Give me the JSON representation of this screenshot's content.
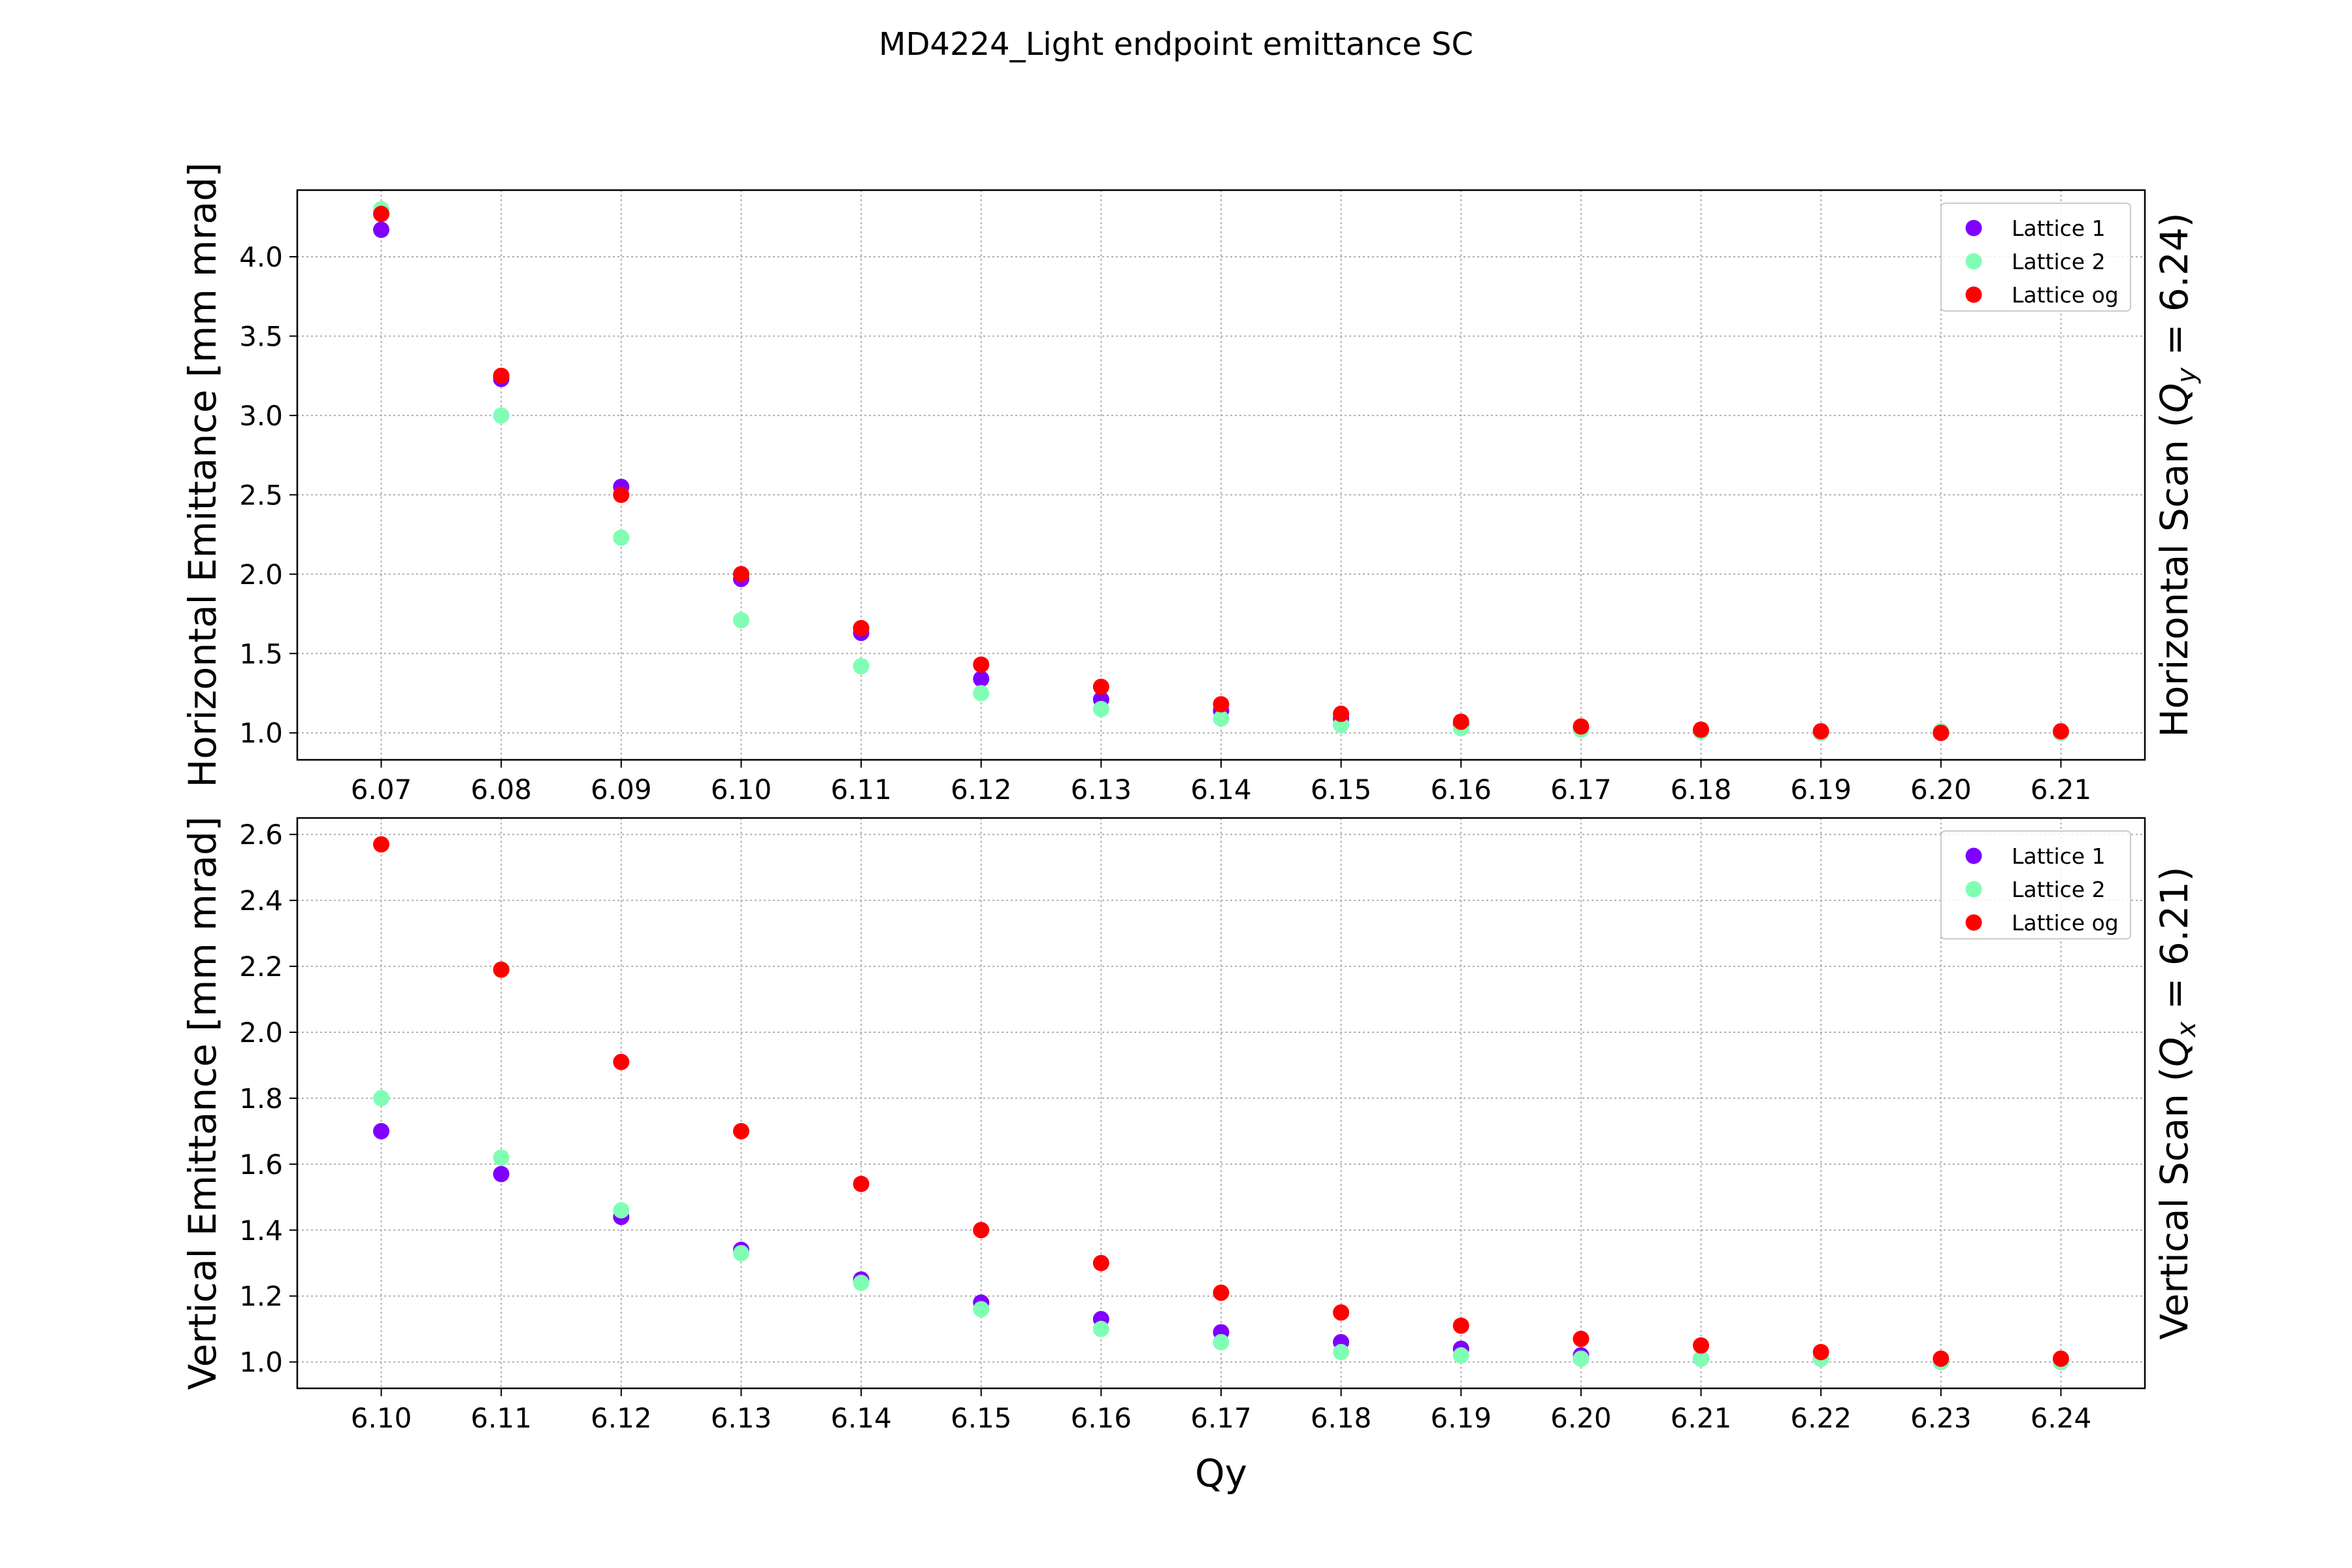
{
  "title": "MD4224_Light endpoint emittance SC",
  "chart_data": [
    {
      "type": "scatter",
      "ylabel": "Horizontal Emittance [mm mrad]",
      "right_label": {
        "prefix": "Horizontal Scan (",
        "q": "Q",
        "sub": "y",
        "suffix": " = 6.24)"
      },
      "xlabel": "",
      "x_ticks": [
        "6.07",
        "6.08",
        "6.09",
        "6.10",
        "6.11",
        "6.12",
        "6.13",
        "6.14",
        "6.15",
        "6.16",
        "6.17",
        "6.18",
        "6.19",
        "6.20",
        "6.21"
      ],
      "y_ticks": [
        "1.0",
        "1.5",
        "2.0",
        "2.5",
        "3.0",
        "3.5",
        "4.0"
      ],
      "xlim": [
        6.063,
        6.217
      ],
      "ylim": [
        0.83,
        4.42
      ],
      "grid": true,
      "legend_position": "upper right",
      "x": [
        6.07,
        6.08,
        6.09,
        6.1,
        6.11,
        6.12,
        6.13,
        6.14,
        6.15,
        6.16,
        6.17,
        6.18,
        6.19,
        6.2,
        6.21
      ],
      "series": [
        {
          "name": "Lattice 1",
          "color": "#7f00ff",
          "values": [
            4.17,
            3.23,
            2.55,
            1.97,
            1.63,
            1.34,
            1.21,
            1.14,
            1.09,
            1.05,
            1.03,
            1.01,
            1.0,
            1.0,
            1.0
          ]
        },
        {
          "name": "Lattice 2",
          "color": "#80ffb4",
          "values": [
            4.3,
            3.0,
            2.23,
            1.71,
            1.42,
            1.25,
            1.15,
            1.09,
            1.05,
            1.03,
            1.02,
            1.01,
            1.0,
            1.01,
            1.0
          ]
        },
        {
          "name": "Lattice og",
          "color": "#ff0000",
          "values": [
            4.27,
            3.25,
            2.5,
            2.0,
            1.66,
            1.43,
            1.29,
            1.18,
            1.12,
            1.07,
            1.04,
            1.02,
            1.01,
            1.0,
            1.01
          ]
        }
      ]
    },
    {
      "type": "scatter",
      "ylabel": "Vertical Emittance [mm mrad]",
      "right_label": {
        "prefix": "Vertical Scan (",
        "q": "Q",
        "sub": "x",
        "suffix": " = 6.21)"
      },
      "xlabel": "Qy",
      "x_ticks": [
        "6.10",
        "6.11",
        "6.12",
        "6.13",
        "6.14",
        "6.15",
        "6.16",
        "6.17",
        "6.18",
        "6.19",
        "6.20",
        "6.21",
        "6.22",
        "6.23",
        "6.24"
      ],
      "y_ticks": [
        "1.0",
        "1.2",
        "1.4",
        "1.6",
        "1.8",
        "2.0",
        "2.2",
        "2.4",
        "2.6"
      ],
      "xlim": [
        6.093,
        6.247
      ],
      "ylim": [
        0.92,
        2.65
      ],
      "grid": true,
      "legend_position": "upper right",
      "x": [
        6.1,
        6.11,
        6.12,
        6.13,
        6.14,
        6.15,
        6.16,
        6.17,
        6.18,
        6.19,
        6.2,
        6.21,
        6.22,
        6.23,
        6.24
      ],
      "series": [
        {
          "name": "Lattice 1",
          "color": "#7f00ff",
          "values": [
            1.7,
            1.57,
            1.44,
            1.34,
            1.25,
            1.18,
            1.13,
            1.09,
            1.06,
            1.04,
            1.02,
            1.01,
            1.01,
            1.0,
            1.0
          ]
        },
        {
          "name": "Lattice 2",
          "color": "#80ffb4",
          "values": [
            1.8,
            1.62,
            1.46,
            1.33,
            1.24,
            1.16,
            1.1,
            1.06,
            1.03,
            1.02,
            1.01,
            1.01,
            1.01,
            1.0,
            1.0
          ]
        },
        {
          "name": "Lattice og",
          "color": "#ff0000",
          "values": [
            2.57,
            2.19,
            1.91,
            1.7,
            1.54,
            1.4,
            1.3,
            1.21,
            1.15,
            1.11,
            1.07,
            1.05,
            1.03,
            1.01,
            1.01
          ]
        }
      ]
    }
  ]
}
